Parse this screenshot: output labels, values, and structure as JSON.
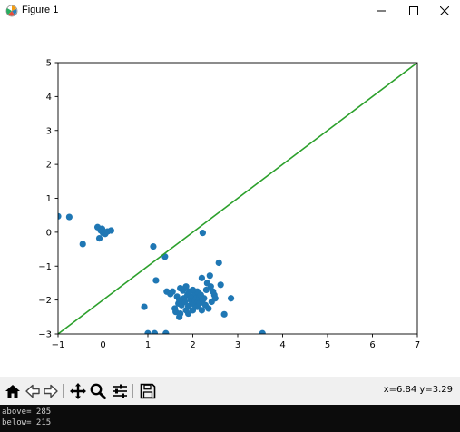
{
  "window": {
    "title": "Figure 1",
    "controls": [
      "minimize-icon",
      "maximize-icon",
      "close-icon"
    ]
  },
  "chart_data": {
    "type": "scatter",
    "title": "",
    "xlabel": "",
    "ylabel": "",
    "xlim": [
      -1,
      7
    ],
    "ylim": [
      -3,
      5
    ],
    "xticks": [
      -1,
      0,
      1,
      2,
      3,
      4,
      5,
      6,
      7
    ],
    "yticks": [
      -3,
      -2,
      -1,
      0,
      1,
      2,
      3,
      4,
      5
    ],
    "grid": false,
    "colors": {
      "points": "#1f77b4",
      "line": "#2ca02c"
    },
    "line": {
      "x": [
        -1,
        7
      ],
      "y": [
        -3,
        5
      ]
    },
    "points": [
      [
        -1.0,
        0.47
      ],
      [
        -0.75,
        0.45
      ],
      [
        -0.45,
        -0.35
      ],
      [
        -0.12,
        0.15
      ],
      [
        -0.08,
        -0.18
      ],
      [
        -0.05,
        0.05
      ],
      [
        0.0,
        -0.02
      ],
      [
        0.05,
        -0.05
      ],
      [
        0.1,
        0.02
      ],
      [
        0.18,
        0.05
      ],
      [
        -0.02,
        0.1
      ],
      [
        0.92,
        -2.2
      ],
      [
        1.0,
        -2.98
      ],
      [
        1.12,
        -0.42
      ],
      [
        1.15,
        -2.98
      ],
      [
        1.18,
        -1.42
      ],
      [
        1.38,
        -0.72
      ],
      [
        1.42,
        -1.75
      ],
      [
        1.4,
        -2.98
      ],
      [
        1.5,
        -1.82
      ],
      [
        1.55,
        -1.75
      ],
      [
        1.6,
        -2.25
      ],
      [
        1.62,
        -2.35
      ],
      [
        1.65,
        -1.9
      ],
      [
        1.68,
        -2.1
      ],
      [
        1.7,
        -2.5
      ],
      [
        1.72,
        -2.4
      ],
      [
        1.75,
        -2.15
      ],
      [
        1.78,
        -1.72
      ],
      [
        1.8,
        -1.95
      ],
      [
        1.82,
        -2.05
      ],
      [
        1.85,
        -1.6
      ],
      [
        1.85,
        -2.3
      ],
      [
        1.88,
        -1.85
      ],
      [
        1.9,
        -2.18
      ],
      [
        1.92,
        -1.75
      ],
      [
        1.95,
        -2.0
      ],
      [
        1.95,
        -1.95
      ],
      [
        1.98,
        -2.05
      ],
      [
        2.0,
        -1.9
      ],
      [
        2.0,
        -2.3
      ],
      [
        2.02,
        -2.12
      ],
      [
        2.05,
        -1.8
      ],
      [
        2.05,
        -2.0
      ],
      [
        2.08,
        -1.95
      ],
      [
        2.1,
        -2.2
      ],
      [
        2.1,
        -1.75
      ],
      [
        2.12,
        -2.05
      ],
      [
        2.15,
        -1.9
      ],
      [
        2.15,
        -2.1
      ],
      [
        2.18,
        -1.85
      ],
      [
        2.2,
        -1.35
      ],
      [
        2.2,
        -2.3
      ],
      [
        2.22,
        -2.0
      ],
      [
        2.22,
        -0.02
      ],
      [
        2.25,
        -1.95
      ],
      [
        2.28,
        -2.15
      ],
      [
        2.3,
        -1.7
      ],
      [
        2.32,
        -1.5
      ],
      [
        2.35,
        -2.25
      ],
      [
        2.38,
        -1.28
      ],
      [
        2.4,
        -1.6
      ],
      [
        2.42,
        -2.05
      ],
      [
        2.45,
        -1.75
      ],
      [
        2.48,
        -1.85
      ],
      [
        2.5,
        -1.95
      ],
      [
        2.58,
        -0.9
      ],
      [
        2.62,
        -1.55
      ],
      [
        2.7,
        -2.42
      ],
      [
        2.85,
        -1.95
      ],
      [
        3.55,
        -2.98
      ],
      [
        1.72,
        -1.65
      ],
      [
        1.9,
        -2.4
      ],
      [
        2.0,
        -1.7
      ],
      [
        1.7,
        -2.0
      ]
    ]
  },
  "toolbar": {
    "buttons": [
      "home-icon",
      "back-icon",
      "forward-icon",
      "pan-icon",
      "zoom-icon",
      "configure-subplots-icon",
      "save-icon"
    ],
    "coordinates": "x=6.84 y=3.29"
  },
  "console": {
    "lines": [
      "above= 285",
      "below= 215"
    ]
  }
}
